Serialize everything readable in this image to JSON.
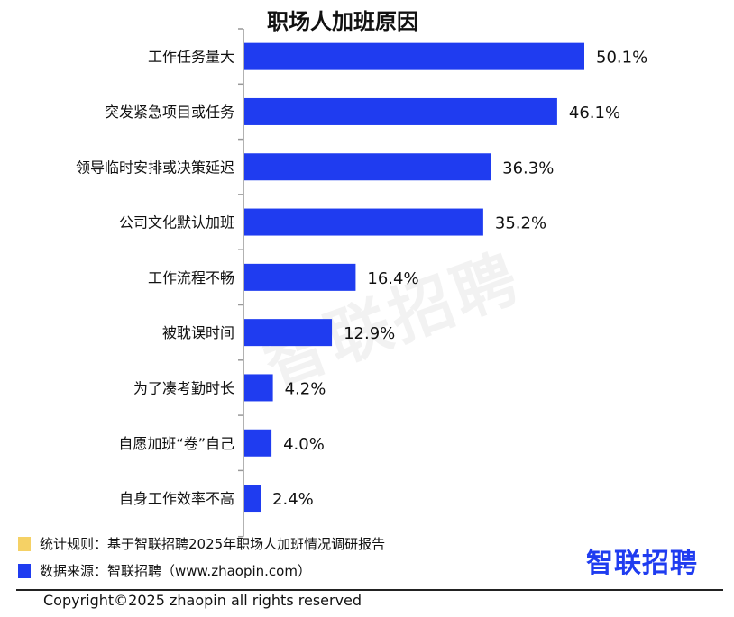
{
  "chart_data": {
    "type": "bar",
    "orientation": "horizontal",
    "title": "职场人加班原因",
    "categories": [
      "工作任务量大",
      "突发紧急项目或任务",
      "领导临时安排或决策延迟",
      "公司文化默认加班",
      "工作流程不畅",
      "被耽误时间",
      "为了凑考勤时长",
      "自愿加班“卷”自己",
      "自身工作效率不高"
    ],
    "values": [
      50.1,
      46.1,
      36.3,
      35.2,
      16.4,
      12.9,
      4.2,
      4.0,
      2.4
    ],
    "value_labels": [
      "50.1%",
      "46.1%",
      "36.3%",
      "35.2%",
      "16.4%",
      "12.9%",
      "4.2%",
      "4.0%",
      "2.4%"
    ],
    "xlim": [
      0,
      60
    ],
    "grid": false,
    "bar_color": "#1f3cf0"
  },
  "watermark": "智联招聘",
  "legend": {
    "rule": {
      "text": "统计规则：基于智联招聘2025年职场人加班情况调研报告",
      "color": "#f5d165"
    },
    "source": {
      "text": "数据来源：智联招聘（www.zhaopin.com）",
      "color": "#1f3cf0"
    }
  },
  "brand": {
    "text": "智联招聘",
    "color": "#1f3cf0"
  },
  "footer": {
    "copyright": "Copyright©2025 zhaopin all rights reserved"
  }
}
